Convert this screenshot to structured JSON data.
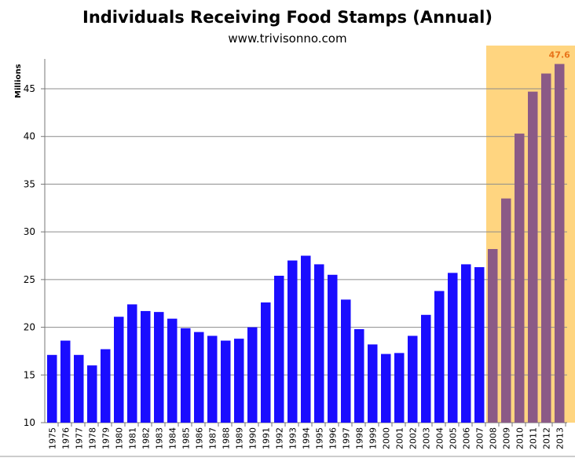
{
  "chart_data": {
    "type": "bar",
    "title": "Individuals Receiving Food Stamps (Annual)",
    "subtitle": "www.trivisonno.com",
    "xlabel": "",
    "ylabel": "Millions",
    "ylim": [
      10,
      48.5
    ],
    "yticks": [
      10,
      15,
      20,
      25,
      30,
      35,
      40,
      45
    ],
    "grid": true,
    "categories": [
      "1975",
      "1976",
      "1977",
      "1978",
      "1979",
      "1980",
      "1981",
      "1982",
      "1983",
      "1984",
      "1985",
      "1986",
      "1987",
      "1988",
      "1989",
      "1990",
      "1991",
      "1992",
      "1993",
      "1994",
      "1995",
      "1996",
      "1997",
      "1998",
      "1999",
      "2000",
      "2001",
      "2002",
      "2003",
      "2004",
      "2005",
      "2006",
      "2007",
      "2008",
      "2009",
      "2010",
      "2011",
      "2012",
      "2013"
    ],
    "values": [
      17.1,
      18.6,
      17.1,
      16.0,
      17.7,
      21.1,
      22.4,
      21.7,
      21.6,
      20.9,
      19.9,
      19.5,
      19.1,
      18.6,
      18.8,
      20.0,
      22.6,
      25.4,
      27.0,
      27.5,
      26.6,
      25.5,
      22.9,
      19.8,
      18.2,
      17.2,
      17.3,
      19.1,
      21.3,
      23.8,
      25.7,
      26.6,
      26.3,
      28.2,
      33.5,
      40.3,
      44.7,
      46.6,
      47.6
    ],
    "highlight_range": [
      "2008",
      "2013"
    ],
    "annotations": [
      {
        "category": "2013",
        "text": "47.6"
      }
    ],
    "colors": {
      "bar": "#1a0dff",
      "highlight_bar": "#8b5a86",
      "highlight_bg": "#ffd580",
      "annotation": "#e8741a",
      "grid": "#8c8c8c"
    }
  }
}
